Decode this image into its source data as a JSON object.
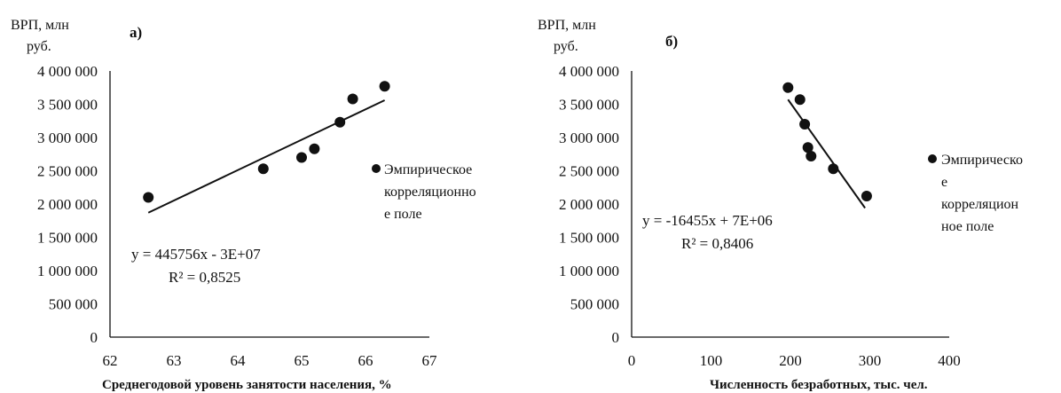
{
  "chart_data": [
    {
      "type": "scatter",
      "panel_label": "а)",
      "ylabel_lines": [
        "ВРП, млн",
        "руб."
      ],
      "xlabel": "Среднегодовой уровень занятости населения, %",
      "xlim": [
        62,
        67
      ],
      "ylim": [
        0,
        4000000
      ],
      "x_ticks": [
        "62",
        "63",
        "64",
        "65",
        "66",
        "67"
      ],
      "y_ticks": [
        "0",
        "500 000",
        "1 000 000",
        "1 500 000",
        "2 000 000",
        "2 500 000",
        "3 000 000",
        "3 500 000",
        "4 000 000"
      ],
      "series": [
        {
          "points": [
            {
              "x": 62.6,
              "y": 2100000
            },
            {
              "x": 64.4,
              "y": 2530000
            },
            {
              "x": 65.0,
              "y": 2700000
            },
            {
              "x": 65.2,
              "y": 2830000
            },
            {
              "x": 65.6,
              "y": 3230000
            },
            {
              "x": 65.8,
              "y": 3580000
            },
            {
              "x": 66.3,
              "y": 3770000
            }
          ]
        }
      ],
      "trendline": {
        "x": [
          62.6,
          66.3
        ],
        "y": [
          1870000,
          3560000
        ]
      },
      "equation": "y = 445756x - 3E+07",
      "r2": "R² = 0,8525",
      "legend_lines": [
        "Эмпирическое",
        "корреляционно",
        "е поле"
      ],
      "legend_position": "right",
      "grid": false,
      "marker_color": "#111111"
    },
    {
      "type": "scatter",
      "panel_label": "б)",
      "ylabel_lines": [
        "ВРП, млн",
        "руб."
      ],
      "xlabel": "Численность безработных, тыс. чел.",
      "xlim": [
        0,
        400
      ],
      "ylim": [
        0,
        4000000
      ],
      "x_ticks": [
        "0",
        "100",
        "200",
        "300",
        "400"
      ],
      "y_ticks": [
        "0",
        "500 000",
        "1 000 000",
        "1 500 000",
        "2 000 000",
        "2 500 000",
        "3 000 000",
        "3 500 000",
        "4 000 000"
      ],
      "series": [
        {
          "points": [
            {
              "x": 197,
              "y": 3750000
            },
            {
              "x": 212,
              "y": 3570000
            },
            {
              "x": 218,
              "y": 3200000
            },
            {
              "x": 222,
              "y": 2850000
            },
            {
              "x": 226,
              "y": 2720000
            },
            {
              "x": 254,
              "y": 2530000
            },
            {
              "x": 296,
              "y": 2120000
            }
          ]
        }
      ],
      "trendline": {
        "x": [
          197,
          294
        ],
        "y": [
          3570000,
          1940000
        ]
      },
      "equation": "y = -16455x + 7E+06",
      "r2": "R² = 0,8406",
      "legend_lines": [
        "Эмпирическо",
        "е",
        "корреляцион",
        "ное поле"
      ],
      "legend_position": "right",
      "grid": false,
      "marker_color": "#111111"
    }
  ]
}
